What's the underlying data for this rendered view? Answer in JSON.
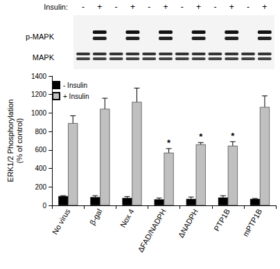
{
  "chart_data": {
    "type": "bar",
    "categories": [
      "No virus",
      "β-gal",
      "Nox 4",
      "ΔFAD/NADPH",
      "ΔNADPH",
      "PTP1B",
      "mPTP1B"
    ],
    "series": [
      {
        "name": "- Insulin",
        "color": "#000000",
        "values": [
          100,
          90,
          80,
          65,
          70,
          85,
          70
        ],
        "errors": [
          5,
          15,
          15,
          15,
          20,
          20,
          5
        ]
      },
      {
        "name": "+ Insulin",
        "color": "#c0c0c0",
        "values": [
          890,
          1045,
          1120,
          570,
          660,
          645,
          1065
        ],
        "errors": [
          80,
          115,
          150,
          45,
          20,
          45,
          120
        ]
      }
    ],
    "ylabel": "ERK1/2 Phosphorylation\n(% of control)",
    "ylim": [
      0,
      1400
    ],
    "yticks": [
      0,
      200,
      400,
      600,
      800,
      1000,
      1200,
      1400
    ],
    "grid": false,
    "legend": "upper left",
    "annotations": [
      {
        "category": "ΔFAD/NADPH",
        "series": "+ Insulin",
        "text": "*"
      },
      {
        "category": "ΔNADPH",
        "series": "+ Insulin",
        "text": "*"
      },
      {
        "category": "PTP1B",
        "series": "+ Insulin",
        "text": "*"
      }
    ]
  },
  "blot": {
    "treatment_label": "Insulin:",
    "lanes": [
      "-",
      "+",
      "-",
      "+",
      "-",
      "+",
      "-",
      "+",
      "-",
      "+",
      "-",
      "+"
    ],
    "rows": [
      "p-MAPK",
      "MAPK"
    ]
  }
}
